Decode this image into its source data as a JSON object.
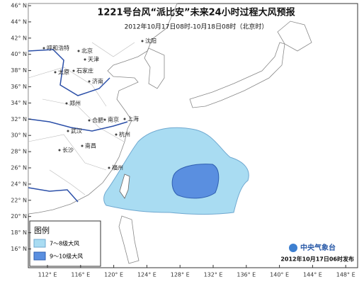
{
  "title": "1221号台风“派比安”未来24小时过程大风预报",
  "subtitle": "2012年10月17日08时-10月18日08时（北京时）",
  "lat_labels": [
    "46° N",
    "44° N",
    "42° N",
    "40° N",
    "38° N",
    "36° N",
    "34° N",
    "32° N",
    "30° N",
    "28° N",
    "26° N",
    "24° N",
    "22° N",
    "20° N",
    "18° N",
    "16° N"
  ],
  "lon_labels": [
    "112° E",
    "116° E",
    "120° E",
    "124° E",
    "128° E",
    "132° E",
    "136° E",
    "140° E",
    "144° E",
    "148° E"
  ],
  "cities": [
    "呼和浩特",
    "沈阳",
    "北京",
    "天津",
    "太原",
    "石家庄",
    "济南",
    "郑州",
    "合肥",
    "南京",
    "上海",
    "武汉",
    "杭州",
    "长沙",
    "南昌",
    "福州"
  ],
  "legend": {
    "title": "图例",
    "items": [
      "7～8级大风",
      "9～10级大风"
    ]
  },
  "footer": {
    "logo": "中央气象台",
    "date": "2012年10月17日06时发布"
  }
}
